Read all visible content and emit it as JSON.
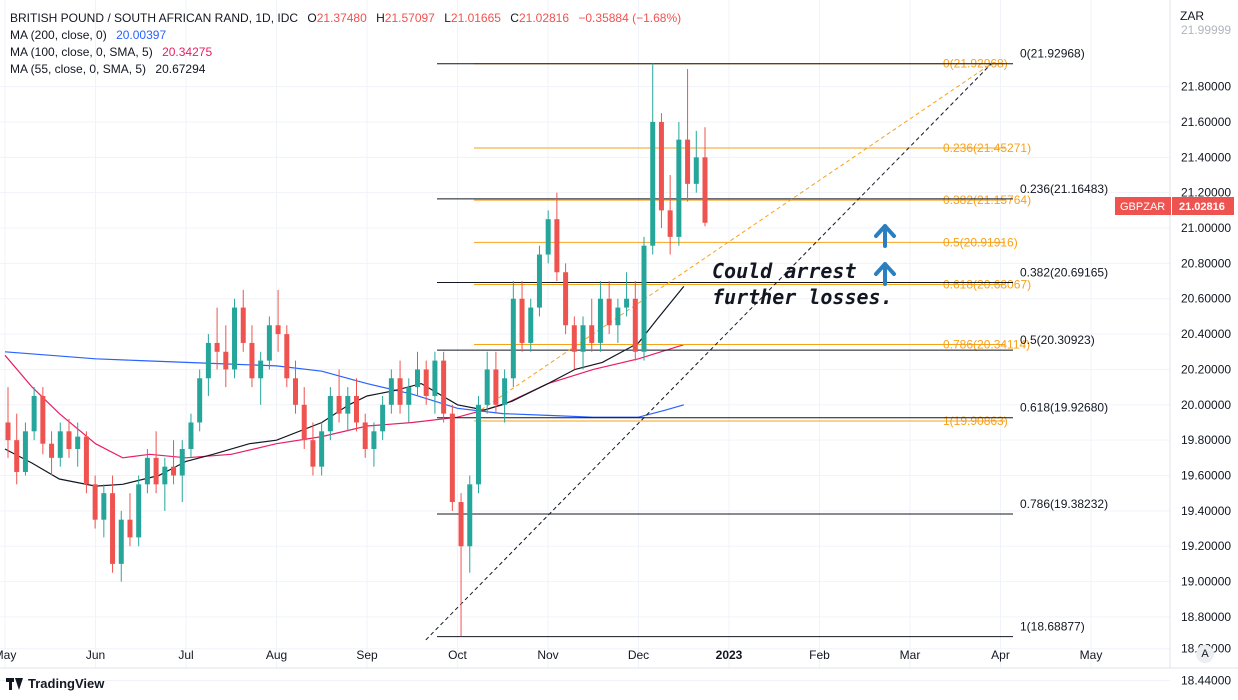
{
  "header": {
    "symbol_line": "BRITISH POUND / SOUTH AFRICAN RAND, 1D, IDC",
    "open_label": "O",
    "open": "21.37480",
    "high_label": "H",
    "high": "21.57097",
    "low_label": "L",
    "low": "21.01665",
    "close_label": "C",
    "close": "21.02816",
    "change": "−0.35884 (−1.68%)"
  },
  "indicators": [
    {
      "label": "MA (200, close, 0)",
      "value": "20.00397",
      "color": "#2962ff"
    },
    {
      "label": "MA (100, close, 0, SMA, 5)",
      "value": "20.34275",
      "color": "#e91e63"
    },
    {
      "label": "MA (55, close, 0, SMA, 5)",
      "value": "20.67294",
      "color": "#131722"
    }
  ],
  "price_tag": {
    "symbol": "GBPZAR",
    "value": "21.02816",
    "color": "#ef5350"
  },
  "annotation": {
    "line1": "Could arrest",
    "line2": "further losses."
  },
  "brand": "TradingView",
  "auto_label": "A",
  "chart_data": {
    "type": "candlestick",
    "y_axis_title": "ZAR",
    "ylim": [
      18.33,
      22.29
    ],
    "y_ticks": [
      "21.80000",
      "21.60000",
      "21.40000",
      "21.20000",
      "21.00000",
      "20.80000",
      "20.60000",
      "20.40000",
      "20.20000",
      "20.00000",
      "19.80000",
      "19.60000",
      "19.40000",
      "19.20000",
      "19.00000",
      "18.80000",
      "18.62000",
      "18.44000"
    ],
    "y_tick_top_partial": "21.99999",
    "x_ticks": [
      {
        "label": "May",
        "month_offset": 0
      },
      {
        "label": "Jun",
        "month_offset": 1
      },
      {
        "label": "Jul",
        "month_offset": 2
      },
      {
        "label": "Aug",
        "month_offset": 3
      },
      {
        "label": "Sep",
        "month_offset": 4
      },
      {
        "label": "Oct",
        "month_offset": 5
      },
      {
        "label": "Nov",
        "month_offset": 6
      },
      {
        "label": "Dec",
        "month_offset": 7
      },
      {
        "label": "2023",
        "month_offset": 8
      },
      {
        "label": "Feb",
        "month_offset": 9
      },
      {
        "label": "Mar",
        "month_offset": 10
      },
      {
        "label": "Apr",
        "month_offset": 11
      },
      {
        "label": "May",
        "month_offset": 12
      }
    ],
    "fib_black": {
      "color": "#131722",
      "levels": [
        {
          "label": "0(21.92968)",
          "value": 21.92968
        },
        {
          "label": "0.236(21.16483)",
          "value": 21.16483
        },
        {
          "label": "0.382(20.69165)",
          "value": 20.69165
        },
        {
          "label": "0.5(20.30923)",
          "value": 20.30923
        },
        {
          "label": "0.618(19.92680)",
          "value": 19.9268
        },
        {
          "label": "0.786(19.38232)",
          "value": 19.38232
        },
        {
          "label": "1(18.68877)",
          "value": 18.68877
        }
      ]
    },
    "fib_orange": {
      "color": "#f7a21b",
      "levels": [
        {
          "label": "0(21.92968)",
          "value": 21.92968
        },
        {
          "label": "0.236(21.45271)",
          "value": 21.45271
        },
        {
          "label": "0.382(21.15764)",
          "value": 21.15764
        },
        {
          "label": "0.5(20.91916)",
          "value": 20.91916
        },
        {
          "label": "0.618(20.68067)",
          "value": 20.68067
        },
        {
          "label": "0.786(20.34114)",
          "value": 20.34114
        },
        {
          "label": "1(19.90863)",
          "value": 19.90863
        }
      ]
    },
    "ma_200": [
      [
        0,
        20.3
      ],
      [
        0.5,
        20.28
      ],
      [
        1,
        20.26
      ],
      [
        1.5,
        20.25
      ],
      [
        2,
        20.24
      ],
      [
        2.5,
        20.23
      ],
      [
        3,
        20.22
      ],
      [
        3.5,
        20.19
      ],
      [
        4,
        20.12
      ],
      [
        4.5,
        20.06
      ],
      [
        5,
        19.98
      ],
      [
        5.5,
        19.95
      ],
      [
        6,
        19.94
      ],
      [
        6.5,
        19.93
      ],
      [
        7,
        19.93
      ],
      [
        7.3,
        19.97
      ],
      [
        7.5,
        20.0
      ]
    ],
    "ma_100": [
      [
        0,
        20.28
      ],
      [
        0.3,
        20.1
      ],
      [
        0.6,
        19.95
      ],
      [
        1,
        19.78
      ],
      [
        1.3,
        19.7
      ],
      [
        1.6,
        19.72
      ],
      [
        2,
        19.7
      ],
      [
        2.5,
        19.72
      ],
      [
        3,
        19.78
      ],
      [
        3.5,
        19.82
      ],
      [
        4,
        19.88
      ],
      [
        4.5,
        19.9
      ],
      [
        5,
        19.93
      ],
      [
        5.5,
        20.0
      ],
      [
        6,
        20.12
      ],
      [
        6.5,
        20.2
      ],
      [
        7,
        20.26
      ],
      [
        7.5,
        20.34
      ]
    ],
    "ma_55": [
      [
        0,
        19.75
      ],
      [
        0.3,
        19.67
      ],
      [
        0.6,
        19.58
      ],
      [
        1,
        19.54
      ],
      [
        1.3,
        19.55
      ],
      [
        1.7,
        19.6
      ],
      [
        2,
        19.68
      ],
      [
        2.3,
        19.72
      ],
      [
        2.7,
        19.78
      ],
      [
        3,
        19.8
      ],
      [
        3.5,
        19.9
      ],
      [
        3.8,
        20.0
      ],
      [
        4,
        20.05
      ],
      [
        4.3,
        20.08
      ],
      [
        4.6,
        20.12
      ],
      [
        5,
        20.0
      ],
      [
        5.3,
        19.97
      ],
      [
        5.6,
        20.02
      ],
      [
        6,
        20.12
      ],
      [
        6.3,
        20.2
      ],
      [
        6.6,
        20.24
      ],
      [
        7,
        20.35
      ],
      [
        7.2,
        20.48
      ],
      [
        7.5,
        20.67
      ]
    ],
    "trendline_outer": {
      "from": [
        4.65,
        18.67
      ],
      "to": [
        10.9,
        21.93
      ],
      "color": "#131722",
      "style": "dashed"
    },
    "trendline_inner": {
      "from": [
        5.2,
        19.95
      ],
      "to": [
        10.9,
        21.93
      ],
      "color": "#f7a21b",
      "style": "dashed"
    },
    "candles": [
      [
        19.9,
        20.1,
        19.7,
        19.8
      ],
      [
        19.8,
        19.95,
        19.55,
        19.62
      ],
      [
        19.62,
        19.9,
        19.6,
        19.85
      ],
      [
        19.85,
        20.1,
        19.8,
        20.05
      ],
      [
        20.05,
        20.1,
        19.72,
        19.78
      ],
      [
        19.78,
        19.85,
        19.6,
        19.7
      ],
      [
        19.7,
        19.9,
        19.65,
        19.85
      ],
      [
        19.85,
        19.92,
        19.7,
        19.75
      ],
      [
        19.75,
        19.9,
        19.65,
        19.82
      ],
      [
        19.82,
        19.85,
        19.5,
        19.55
      ],
      [
        19.55,
        19.6,
        19.3,
        19.35
      ],
      [
        19.35,
        19.55,
        19.25,
        19.5
      ],
      [
        19.5,
        19.6,
        19.05,
        19.1
      ],
      [
        19.1,
        19.4,
        19.0,
        19.35
      ],
      [
        19.35,
        19.5,
        19.2,
        19.25
      ],
      [
        19.25,
        19.6,
        19.2,
        19.55
      ],
      [
        19.55,
        19.75,
        19.5,
        19.7
      ],
      [
        19.7,
        19.85,
        19.5,
        19.55
      ],
      [
        19.55,
        19.7,
        19.4,
        19.65
      ],
      [
        19.65,
        19.8,
        19.55,
        19.6
      ],
      [
        19.6,
        19.8,
        19.45,
        19.75
      ],
      [
        19.75,
        19.95,
        19.7,
        19.9
      ],
      [
        19.9,
        20.2,
        19.85,
        20.15
      ],
      [
        20.15,
        20.4,
        20.05,
        20.35
      ],
      [
        20.35,
        20.55,
        20.2,
        20.3
      ],
      [
        20.3,
        20.45,
        20.1,
        20.2
      ],
      [
        20.2,
        20.6,
        20.15,
        20.55
      ],
      [
        20.55,
        20.65,
        20.3,
        20.35
      ],
      [
        20.35,
        20.45,
        20.1,
        20.15
      ],
      [
        20.15,
        20.3,
        20.0,
        20.25
      ],
      [
        20.25,
        20.5,
        20.2,
        20.45
      ],
      [
        20.45,
        20.65,
        20.3,
        20.4
      ],
      [
        20.4,
        20.45,
        20.1,
        20.15
      ],
      [
        20.15,
        20.25,
        19.95,
        20.0
      ],
      [
        20.0,
        20.1,
        19.75,
        19.8
      ],
      [
        19.8,
        19.9,
        19.6,
        19.65
      ],
      [
        19.65,
        19.9,
        19.6,
        19.85
      ],
      [
        19.85,
        20.1,
        19.8,
        20.05
      ],
      [
        20.05,
        20.2,
        19.9,
        19.95
      ],
      [
        19.95,
        20.1,
        19.85,
        20.05
      ],
      [
        20.05,
        20.15,
        19.85,
        19.9
      ],
      [
        19.9,
        19.95,
        19.7,
        19.75
      ],
      [
        19.75,
        19.9,
        19.65,
        19.85
      ],
      [
        19.85,
        20.05,
        19.8,
        20.0
      ],
      [
        20.0,
        20.2,
        19.95,
        20.15
      ],
      [
        20.15,
        20.25,
        19.95,
        20.0
      ],
      [
        20.0,
        20.15,
        19.9,
        20.1
      ],
      [
        20.1,
        20.3,
        20.05,
        20.2
      ],
      [
        20.2,
        20.25,
        20.0,
        20.05
      ],
      [
        20.05,
        20.3,
        19.95,
        20.25
      ],
      [
        20.25,
        20.3,
        19.9,
        19.95
      ],
      [
        19.95,
        20.0,
        19.4,
        19.45
      ],
      [
        19.45,
        19.5,
        18.69,
        19.2
      ],
      [
        19.2,
        19.6,
        19.05,
        19.55
      ],
      [
        19.55,
        20.05,
        19.5,
        20.0
      ],
      [
        20.0,
        20.3,
        19.95,
        20.2
      ],
      [
        20.2,
        20.3,
        19.95,
        20.0
      ],
      [
        20.0,
        20.2,
        19.9,
        20.15
      ],
      [
        20.15,
        20.7,
        20.1,
        20.6
      ],
      [
        20.6,
        20.7,
        20.3,
        20.35
      ],
      [
        20.35,
        20.6,
        20.3,
        20.55
      ],
      [
        20.55,
        20.9,
        20.5,
        20.85
      ],
      [
        20.85,
        21.1,
        20.8,
        21.05
      ],
      [
        21.05,
        21.2,
        20.7,
        20.75
      ],
      [
        20.75,
        20.8,
        20.4,
        20.45
      ],
      [
        20.45,
        20.5,
        20.2,
        20.3
      ],
      [
        20.3,
        20.5,
        20.2,
        20.45
      ],
      [
        20.45,
        20.6,
        20.3,
        20.35
      ],
      [
        20.35,
        20.7,
        20.3,
        20.6
      ],
      [
        20.6,
        20.7,
        20.4,
        20.45
      ],
      [
        20.45,
        20.6,
        20.35,
        20.55
      ],
      [
        20.55,
        20.75,
        20.5,
        20.6
      ],
      [
        20.6,
        20.7,
        20.25,
        20.3
      ],
      [
        20.3,
        20.95,
        20.25,
        20.9
      ],
      [
        20.9,
        21.93,
        20.85,
        21.6
      ],
      [
        21.6,
        21.65,
        21.0,
        21.1
      ],
      [
        21.1,
        21.3,
        20.85,
        20.95
      ],
      [
        20.95,
        21.6,
        20.9,
        21.5
      ],
      [
        21.5,
        21.9,
        21.15,
        21.25
      ],
      [
        21.25,
        21.55,
        21.2,
        21.4
      ],
      [
        21.4,
        21.57,
        21.01,
        21.03
      ]
    ]
  }
}
